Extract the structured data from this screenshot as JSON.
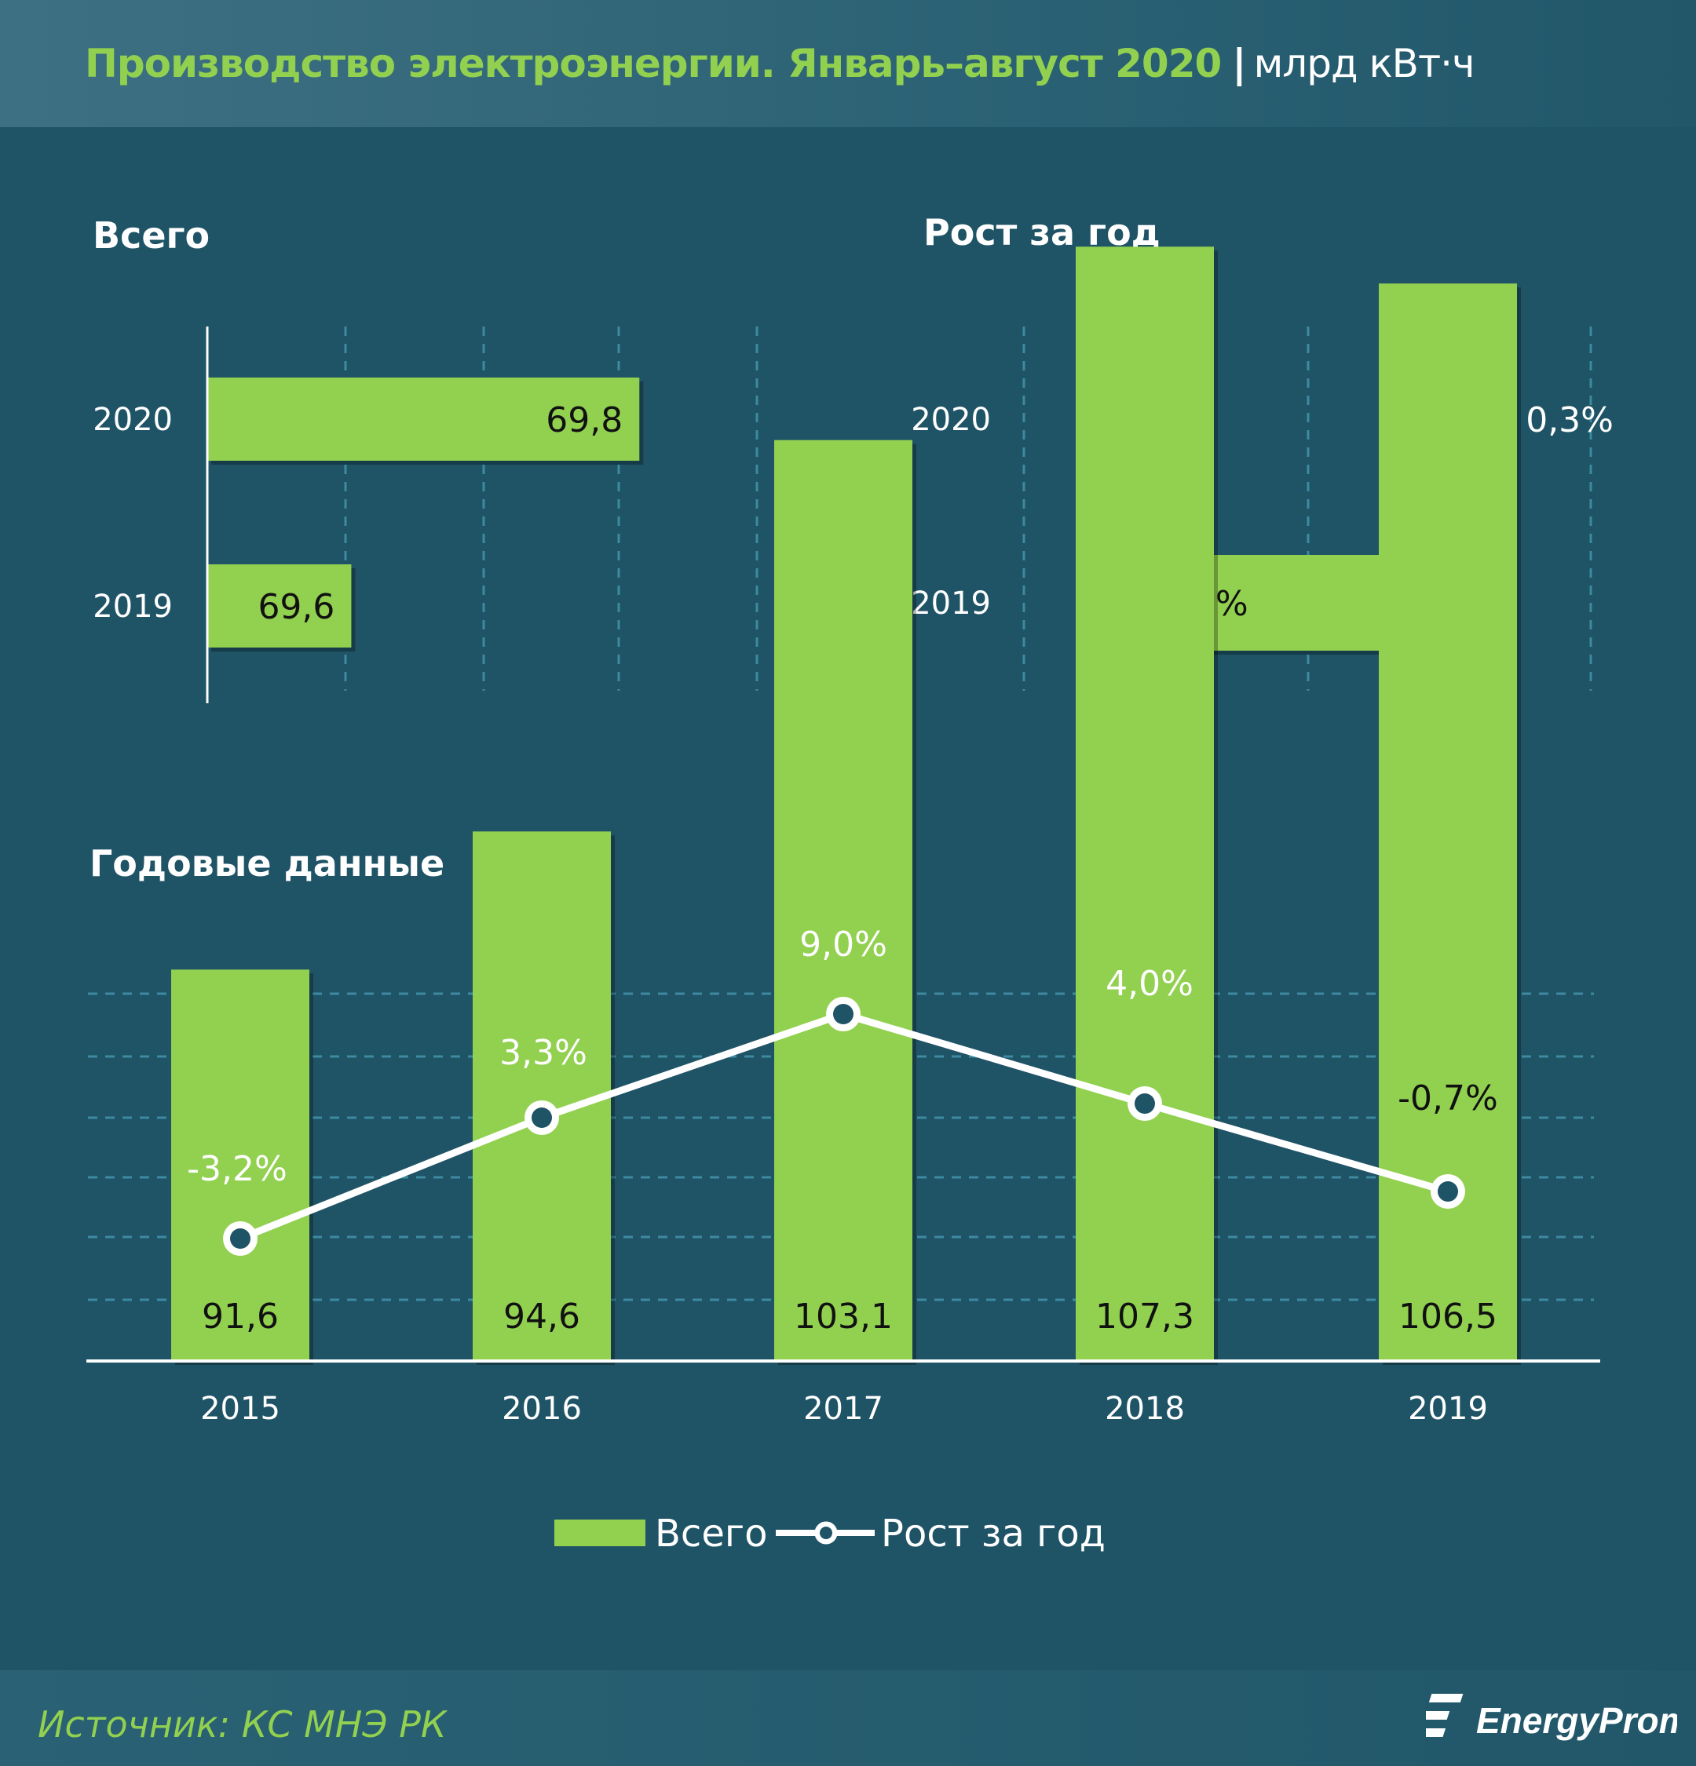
{
  "header": {
    "title": "Производство электроэнергии. Январь–август 2020",
    "separator": "|",
    "unit": "млрд кВт·ч"
  },
  "footer": {
    "source": "Источник: КС МНЭ РК",
    "logo_text": "EnergyProm"
  },
  "colors": {
    "background": "#1f5366",
    "bar": "#92d050",
    "title": "#92d050",
    "text": "#ffffff",
    "line": "#ffffff",
    "grid": "#3e8aa0"
  },
  "chart_data": [
    {
      "id": "total",
      "type": "bar",
      "orientation": "horizontal",
      "title": "Всего",
      "categories": [
        "2020",
        "2019"
      ],
      "values": [
        69.8,
        69.6
      ],
      "value_labels": [
        "69,8",
        "69,6"
      ],
      "grid": true
    },
    {
      "id": "growth",
      "type": "bar",
      "orientation": "horizontal",
      "title": "Рост за год",
      "categories": [
        "2020",
        "2019"
      ],
      "values": [
        0.3,
        -2.3
      ],
      "value_labels": [
        "0,3%",
        "-2,3%"
      ],
      "grid": true
    },
    {
      "id": "annual",
      "type": "bar",
      "title": "Годовые данные",
      "categories": [
        "2015",
        "2016",
        "2017",
        "2018",
        "2019"
      ],
      "series": [
        {
          "name": "Всего",
          "type": "bar",
          "values": [
            91.6,
            94.6,
            103.1,
            107.3,
            106.5
          ],
          "labels": [
            "91,6",
            "94,6",
            "103,1",
            "107,3",
            "106,5"
          ]
        },
        {
          "name": "Рост за год",
          "type": "line",
          "values": [
            -3.2,
            3.3,
            9.0,
            4.0,
            -0.7
          ],
          "labels": [
            "-3,2%",
            "3,3%",
            "9,0%",
            "4,0%",
            "-0,7%"
          ]
        }
      ],
      "legend": {
        "position": "bottom",
        "items": [
          "Всего",
          "Рост за год"
        ]
      },
      "grid": true
    }
  ]
}
